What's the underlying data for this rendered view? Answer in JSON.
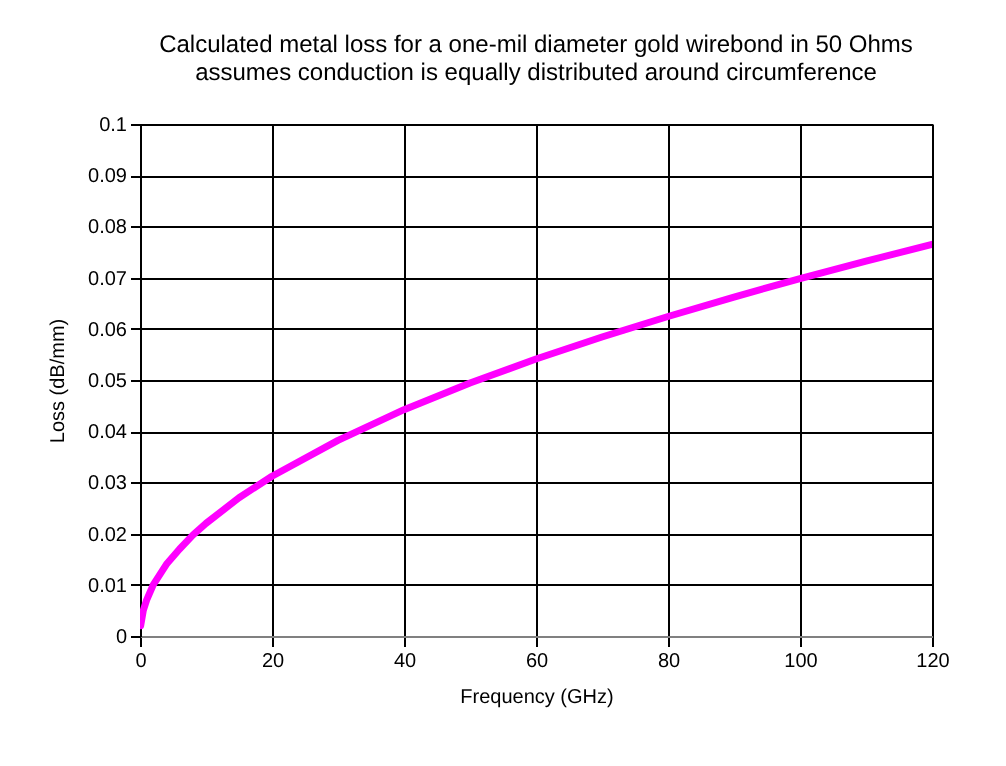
{
  "chart_data": {
    "type": "line",
    "title": "Calculated metal loss for a one-mil diameter gold wirebond in 50 Ohms",
    "subtitle": "assumes conduction is equally distributed around circumference",
    "xlabel": "Frequency (GHz)",
    "ylabel": "Loss (dB/mm)",
    "x": [
      0.1,
      0.5,
      1,
      2,
      4,
      6,
      8,
      10,
      15,
      20,
      30,
      40,
      50,
      60,
      70,
      80,
      90,
      100,
      110,
      120
    ],
    "series": [
      {
        "color": "#ff00ff",
        "values": [
          0.002,
          0.005,
          0.007,
          0.01,
          0.014,
          0.017,
          0.0197,
          0.022,
          0.027,
          0.0312,
          0.0382,
          0.0442,
          0.0494,
          0.0541,
          0.0584,
          0.0624,
          0.0662,
          0.0698,
          0.0732,
          0.0765
        ]
      }
    ],
    "xlim": [
      0,
      120
    ],
    "xticks": [
      0,
      20,
      40,
      60,
      80,
      100,
      120
    ],
    "ylim": [
      0,
      0.1
    ],
    "yticks": [
      0,
      0.01,
      0.02,
      0.03,
      0.04,
      0.05,
      0.06,
      0.07,
      0.08,
      0.09,
      0.1
    ],
    "grid": true,
    "marker": "none",
    "line_style": "solid"
  }
}
